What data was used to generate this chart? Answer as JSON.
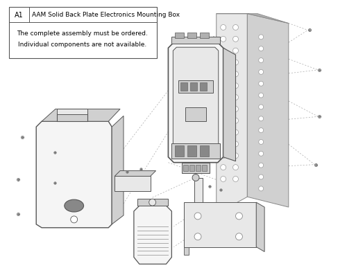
{
  "bg_color": "#ffffff",
  "legend": {
    "part_number": "A1",
    "part_name": "AAM Solid Back Plate Electronics Mounting Box",
    "note1": "The complete assembly must be ordered.",
    "note2": "Individual components are not available."
  },
  "colors": {
    "light_gray": "#e8e8e8",
    "mid_gray": "#d0d0d0",
    "dark_gray": "#b0b0b0",
    "edge": "#555555",
    "edge_light": "#888888",
    "white": "#f5f5f5",
    "screw": "#666666",
    "dashed": "#aaaaaa"
  }
}
